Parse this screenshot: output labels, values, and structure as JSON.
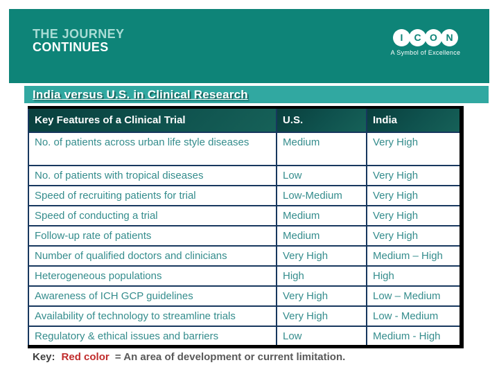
{
  "header": {
    "journey_line1": "THE JOURNEY",
    "journey_line2": "CONTINUES",
    "logo_letters": [
      "I",
      "C",
      "O",
      "N"
    ],
    "logo_tagline": "A Symbol of Excellence"
  },
  "title": "India versus U.S. in Clinical Research",
  "table": {
    "columns": [
      "Key Features of a Clinical Trial",
      "U.S.",
      "India"
    ],
    "rows": [
      {
        "feature": "No. of patients across urban life style diseases",
        "us": "Medium",
        "us_red": false,
        "india": "Very High",
        "india_red": false
      },
      {
        "feature": "No. of patients with tropical diseases",
        "us": "Low",
        "us_red": true,
        "india": "Very High",
        "india_red": false
      },
      {
        "feature": "Speed of recruiting patients for  trial",
        "us": "Low-Medium",
        "us_red": true,
        "india": "Very High",
        "india_red": false
      },
      {
        "feature": "Speed of conducting a trial",
        "us": "Medium",
        "us_red": false,
        "india": "Very High",
        "india_red": false
      },
      {
        "feature": "Follow-up rate of patients",
        "us": "Medium",
        "us_red": false,
        "india": "Very High",
        "india_red": false
      },
      {
        "feature": "Number of qualified doctors and clinicians",
        "us": "Very High",
        "us_red": false,
        "india": "Medium – High",
        "india_red": false
      },
      {
        "feature": "Heterogeneous populations",
        "us": "High",
        "us_red": false,
        "india": "High",
        "india_red": false
      },
      {
        "feature": "Awareness of ICH GCP guidelines",
        "us": "Very High",
        "us_red": false,
        "india": "Low – Medium",
        "india_red": true
      },
      {
        "feature": "Availability of technology to streamline trials",
        "us": "Very High",
        "us_red": false,
        "india": "Low - Medium",
        "india_red": true
      },
      {
        "feature": "Regulatory & ethical issues and barriers",
        "us": "Low",
        "us_red": false,
        "india": "Medium - High",
        "india_red": true
      }
    ]
  },
  "key": {
    "label": "Key:",
    "red_term": "Red color",
    "rest": "= An area of development or current limitation."
  },
  "colors": {
    "header_teal": "#0E8478",
    "title_bar_teal": "#31A8A1",
    "journey_light_teal": "#A9DCD5",
    "table_header_dark_teal": "#0F524E",
    "table_border_navy": "#17375E",
    "body_text_teal": "#348C8C",
    "limitation_red": "#C02B2B",
    "key_gray": "#595959"
  }
}
